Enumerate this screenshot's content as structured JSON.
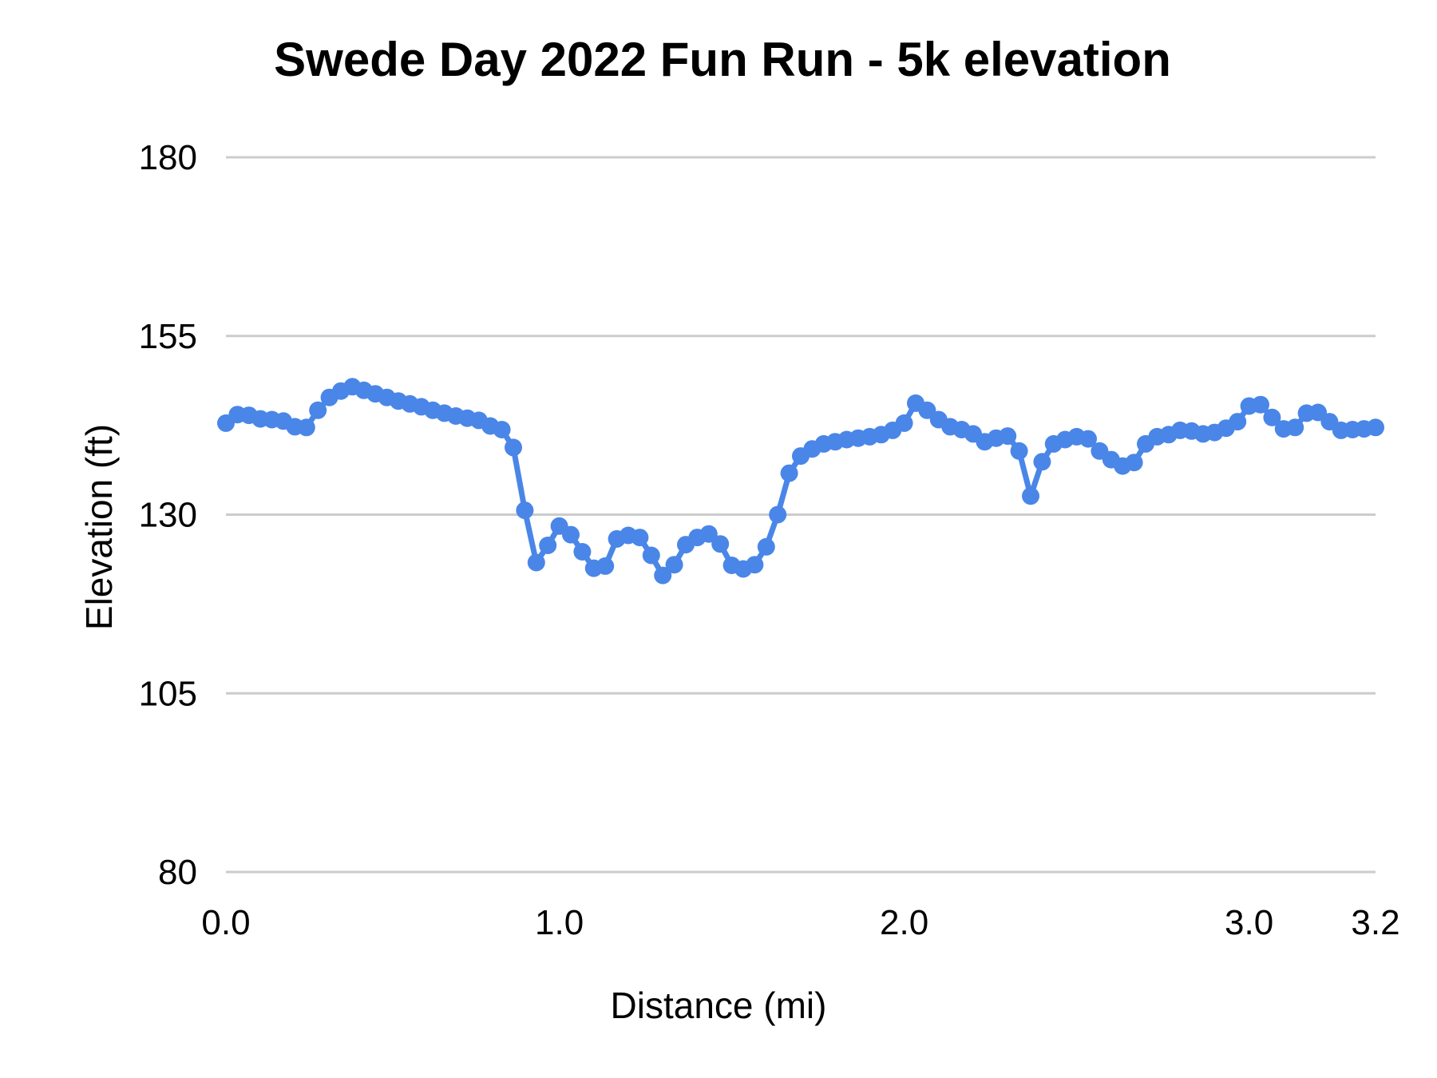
{
  "page": {
    "background_color": "#ffffff"
  },
  "chart_data": {
    "type": "line",
    "title": "Swede Day 2022 Fun Run - 5k elevation",
    "xlabel": "Distance (mi)",
    "ylabel": "Elevation (ft)",
    "ylim": [
      80,
      180
    ],
    "y_ticks": [
      "180",
      "155",
      "130",
      "105",
      "80"
    ],
    "y_tick_values": [
      180,
      155,
      130,
      105,
      80
    ],
    "x_tick_labels": [
      "0.0",
      "1.0",
      "2.0",
      "3.0",
      "3.2"
    ],
    "x_tick_point_indices": [
      0,
      29,
      59,
      89,
      100
    ],
    "grid": "horizontal",
    "legend": "none",
    "marker": "circle",
    "line_color": "#4a86e8",
    "grid_color": "#cccccc",
    "text_color": "#000000",
    "series": [
      {
        "name": "Elevation",
        "x_mi": [
          0.0,
          0.034,
          0.069,
          0.103,
          0.138,
          0.172,
          0.207,
          0.241,
          0.276,
          0.31,
          0.345,
          0.379,
          0.414,
          0.448,
          0.483,
          0.517,
          0.552,
          0.586,
          0.621,
          0.655,
          0.69,
          0.724,
          0.759,
          0.793,
          0.828,
          0.862,
          0.897,
          0.931,
          0.966,
          1.0,
          1.033,
          1.067,
          1.1,
          1.133,
          1.167,
          1.2,
          1.233,
          1.267,
          1.3,
          1.333,
          1.367,
          1.4,
          1.433,
          1.467,
          1.5,
          1.533,
          1.567,
          1.6,
          1.633,
          1.667,
          1.7,
          1.733,
          1.767,
          1.8,
          1.833,
          1.867,
          1.9,
          1.933,
          1.967,
          2.0,
          2.033,
          2.067,
          2.1,
          2.133,
          2.167,
          2.2,
          2.233,
          2.267,
          2.3,
          2.333,
          2.367,
          2.4,
          2.433,
          2.467,
          2.5,
          2.533,
          2.567,
          2.6,
          2.633,
          2.667,
          2.7,
          2.733,
          2.767,
          2.8,
          2.833,
          2.867,
          2.9,
          2.933,
          2.967,
          3.0,
          3.018,
          3.036,
          3.055,
          3.073,
          3.091,
          3.109,
          3.127,
          3.145,
          3.164,
          3.182,
          3.2
        ],
        "y_ft": [
          142.8,
          144.0,
          143.9,
          143.4,
          143.3,
          143.1,
          142.3,
          142.2,
          144.6,
          146.4,
          147.3,
          147.9,
          147.4,
          146.9,
          146.4,
          145.9,
          145.5,
          145.1,
          144.6,
          144.2,
          143.8,
          143.5,
          143.2,
          142.4,
          141.9,
          139.4,
          130.6,
          123.3,
          125.7,
          128.4,
          127.2,
          124.8,
          122.5,
          122.8,
          126.6,
          127.1,
          126.8,
          124.3,
          121.5,
          123.0,
          125.8,
          126.8,
          127.3,
          125.9,
          122.9,
          122.4,
          123.0,
          125.5,
          130.0,
          135.8,
          138.2,
          139.2,
          139.9,
          140.2,
          140.5,
          140.7,
          140.9,
          141.2,
          141.8,
          142.8,
          145.6,
          144.6,
          143.3,
          142.3,
          141.9,
          141.3,
          140.2,
          140.7,
          141.0,
          138.9,
          132.6,
          137.4,
          139.9,
          140.5,
          140.9,
          140.6,
          138.9,
          137.7,
          136.8,
          137.3,
          139.9,
          140.9,
          141.2,
          141.8,
          141.7,
          141.3,
          141.5,
          142.1,
          143.0,
          145.2,
          145.4,
          143.6,
          142.0,
          142.2,
          144.2,
          144.3,
          143.0,
          141.8,
          141.9,
          142.0,
          142.2
        ]
      }
    ]
  }
}
